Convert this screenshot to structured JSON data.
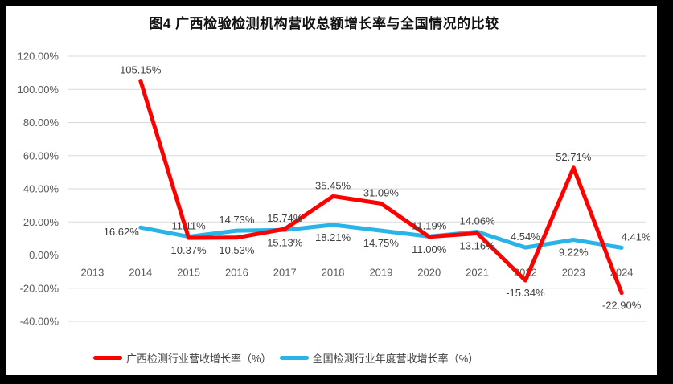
{
  "title": "图4 广西检验检测机构营收总额增长率与全国情况的比较",
  "chart_data": {
    "type": "line",
    "title": "图4 广西检验检测机构营收总额增长率与全国情况的比较",
    "categories": [
      "2013",
      "2014",
      "2015",
      "2016",
      "2017",
      "2018",
      "2019",
      "2020",
      "2021",
      "2022",
      "2023",
      "2024"
    ],
    "series": [
      {
        "id": "guangxi",
        "name": "广西检测行业营收增长率（%）",
        "color": "#FF0000",
        "values": [
          null,
          105.15,
          10.37,
          10.53,
          15.74,
          35.45,
          31.09,
          11.0,
          13.16,
          -15.34,
          52.71,
          -22.9
        ],
        "labels": [
          "",
          "105.15%",
          "10.37%",
          "10.53%",
          "15.74%",
          "35.45%",
          "31.09%",
          "11.00%",
          "13.16%",
          "-15.34%",
          "52.71%",
          "-22.90%"
        ],
        "label_pos": [
          null,
          "above",
          "below",
          "below",
          "above",
          "above",
          "above",
          "below",
          "below",
          "below",
          "above",
          "below"
        ]
      },
      {
        "id": "national",
        "name": "全国检测行业年度营收增长率（%）",
        "color": "#29B4E9",
        "values": [
          null,
          16.62,
          11.11,
          14.73,
          15.13,
          18.21,
          14.75,
          11.19,
          14.06,
          4.54,
          9.22,
          4.41
        ],
        "labels": [
          "",
          "16.62%",
          "11.11%",
          "14.73%",
          "15.13%",
          "18.21%",
          "14.75%",
          "11.19%",
          "14.06%",
          "4.54%",
          "9.22%",
          "4.41%"
        ],
        "label_pos": [
          null,
          "left",
          "above",
          "above",
          "below",
          "below",
          "below",
          "above",
          "above",
          "above",
          "below",
          "above-right"
        ]
      }
    ],
    "xlabel": "",
    "ylabel": "",
    "ylim": [
      -40,
      120
    ],
    "ytick_step": 20,
    "ytick_labels": [
      "120.00%",
      "100.00%",
      "80.00%",
      "60.00%",
      "40.00%",
      "20.00%",
      "0.00%",
      "-20.00%",
      "-40.00%"
    ],
    "grid": true,
    "legend_position": "bottom",
    "colors": {
      "grid": "#D9D9D9",
      "axis_text": "#595959",
      "data_label_text": "#404040",
      "background": "#FFFFFF",
      "frame": "#000000"
    }
  }
}
